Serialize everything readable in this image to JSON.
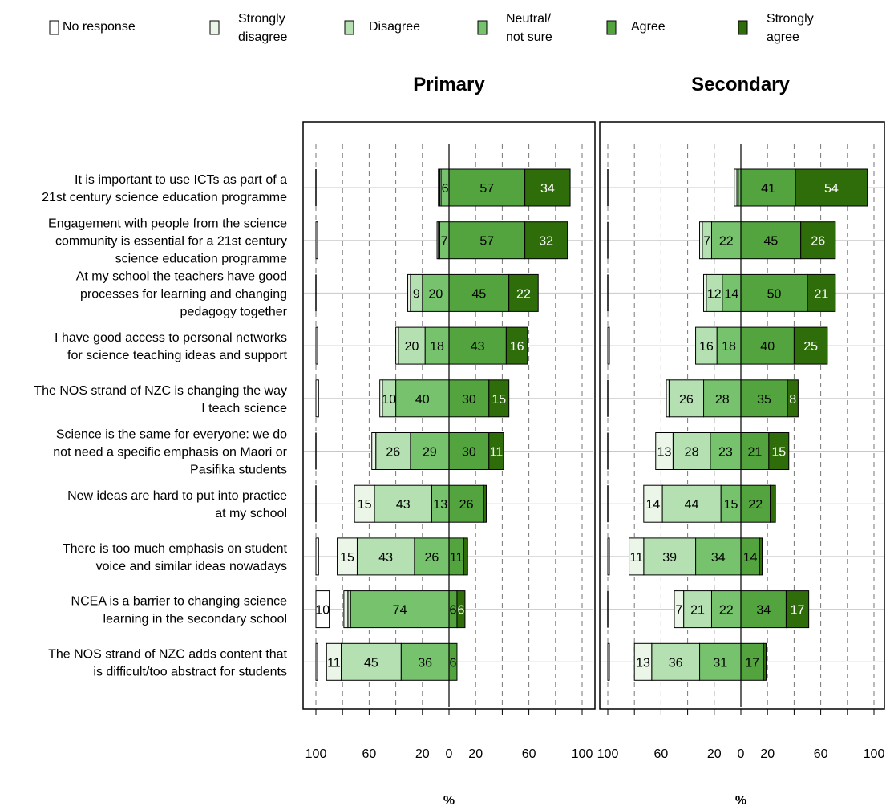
{
  "legend": {
    "items": [
      {
        "line1": "No response",
        "line2": "",
        "color": "#ffffff"
      },
      {
        "line1": "Strongly",
        "line2": "disagree",
        "color": "#ebf6e8"
      },
      {
        "line1": "Disagree",
        "line2": "",
        "color": "#b4e0b2"
      },
      {
        "line1": "Neutral/",
        "line2": "not sure",
        "color": "#76c26d"
      },
      {
        "line1": "Agree",
        "line2": "",
        "color": "#53a33f"
      },
      {
        "line1": "Strongly",
        "line2": "agree",
        "color": "#2f6d0b"
      }
    ]
  },
  "x_axis": {
    "label": "%",
    "tick_values": [
      100,
      60,
      20,
      0,
      20,
      60,
      100
    ]
  },
  "chart_data": {
    "type": "bar",
    "subtype": "diverging-stacked",
    "segments": [
      "No response",
      "Strongly disagree",
      "Disagree",
      "Neutral/not sure",
      "Agree",
      "Strongly agree"
    ],
    "statements": [
      [
        "It is important to use ICTs as part of a",
        "21st century science education programme"
      ],
      [
        "Engagement with people from the science",
        "community is essential for a 21st century",
        "science education programme"
      ],
      [
        "At my school the teachers have good",
        "processes for learning and changing",
        "pedagogy together"
      ],
      [
        "I have good access to personal networks",
        "for science teaching ideas and support"
      ],
      [
        "The NOS strand of NZC is changing the way",
        "I teach science"
      ],
      [
        "Science is the same for everyone: we do",
        "not need a specific emphasis on Maori or",
        "Pasifika students"
      ],
      [
        "New ideas are hard to put into practice",
        "at my school"
      ],
      [
        "There is too much emphasis on student",
        "voice and similar ideas nowadays"
      ],
      [
        "NCEA is a barrier to changing science",
        "learning in the secondary school"
      ],
      [
        "The NOS strand of NZC adds content that",
        "is difficult/too abstract for students"
      ]
    ],
    "panels": [
      {
        "title": "Primary",
        "rows": [
          {
            "no_response": 0,
            "strongly_disagree": 1,
            "disagree": 1,
            "neutral": 6,
            "agree": 57,
            "strongly_agree": 34
          },
          {
            "no_response": 1,
            "strongly_disagree": 1,
            "disagree": 1,
            "neutral": 7,
            "agree": 57,
            "strongly_agree": 32
          },
          {
            "no_response": 0,
            "strongly_disagree": 2,
            "disagree": 9,
            "neutral": 20,
            "agree": 45,
            "strongly_agree": 22
          },
          {
            "no_response": 1,
            "strongly_disagree": 2,
            "disagree": 20,
            "neutral": 18,
            "agree": 43,
            "strongly_agree": 16
          },
          {
            "no_response": 2,
            "strongly_disagree": 2,
            "disagree": 10,
            "neutral": 40,
            "agree": 30,
            "strongly_agree": 15
          },
          {
            "no_response": 0,
            "strongly_disagree": 3,
            "disagree": 26,
            "neutral": 29,
            "agree": 30,
            "strongly_agree": 11
          },
          {
            "no_response": 0,
            "strongly_disagree": 15,
            "disagree": 43,
            "neutral": 13,
            "agree": 26,
            "strongly_agree": 2
          },
          {
            "no_response": 2,
            "strongly_disagree": 15,
            "disagree": 43,
            "neutral": 26,
            "agree": 11,
            "strongly_agree": 3
          },
          {
            "no_response": 10,
            "strongly_disagree": 3,
            "disagree": 2,
            "neutral": 74,
            "agree": 6,
            "strongly_agree": 6
          },
          {
            "no_response": 1,
            "strongly_disagree": 11,
            "disagree": 45,
            "neutral": 36,
            "agree": 6,
            "strongly_agree": 0
          }
        ]
      },
      {
        "title": "Secondary",
        "rows": [
          {
            "no_response": 0,
            "strongly_disagree": 2,
            "disagree": 1,
            "neutral": 2,
            "agree": 41,
            "strongly_agree": 54
          },
          {
            "no_response": 0,
            "strongly_disagree": 2,
            "disagree": 7,
            "neutral": 22,
            "agree": 45,
            "strongly_agree": 26
          },
          {
            "no_response": 0,
            "strongly_disagree": 2,
            "disagree": 12,
            "neutral": 14,
            "agree": 50,
            "strongly_agree": 21
          },
          {
            "no_response": 1,
            "strongly_disagree": 0,
            "disagree": 16,
            "neutral": 18,
            "agree": 40,
            "strongly_agree": 25
          },
          {
            "no_response": 0,
            "strongly_disagree": 2,
            "disagree": 26,
            "neutral": 28,
            "agree": 35,
            "strongly_agree": 8
          },
          {
            "no_response": 0,
            "strongly_disagree": 13,
            "disagree": 28,
            "neutral": 23,
            "agree": 21,
            "strongly_agree": 15
          },
          {
            "no_response": 0,
            "strongly_disagree": 14,
            "disagree": 44,
            "neutral": 15,
            "agree": 22,
            "strongly_agree": 4
          },
          {
            "no_response": 1,
            "strongly_disagree": 11,
            "disagree": 39,
            "neutral": 34,
            "agree": 14,
            "strongly_agree": 2
          },
          {
            "no_response": 0,
            "strongly_disagree": 7,
            "disagree": 21,
            "neutral": 22,
            "agree": 34,
            "strongly_agree": 17
          },
          {
            "no_response": 1,
            "strongly_disagree": 13,
            "disagree": 36,
            "neutral": 31,
            "agree": 17,
            "strongly_agree": 2
          }
        ]
      }
    ],
    "xlim": [
      -100,
      100
    ],
    "grid": true,
    "legend_position": "top"
  }
}
